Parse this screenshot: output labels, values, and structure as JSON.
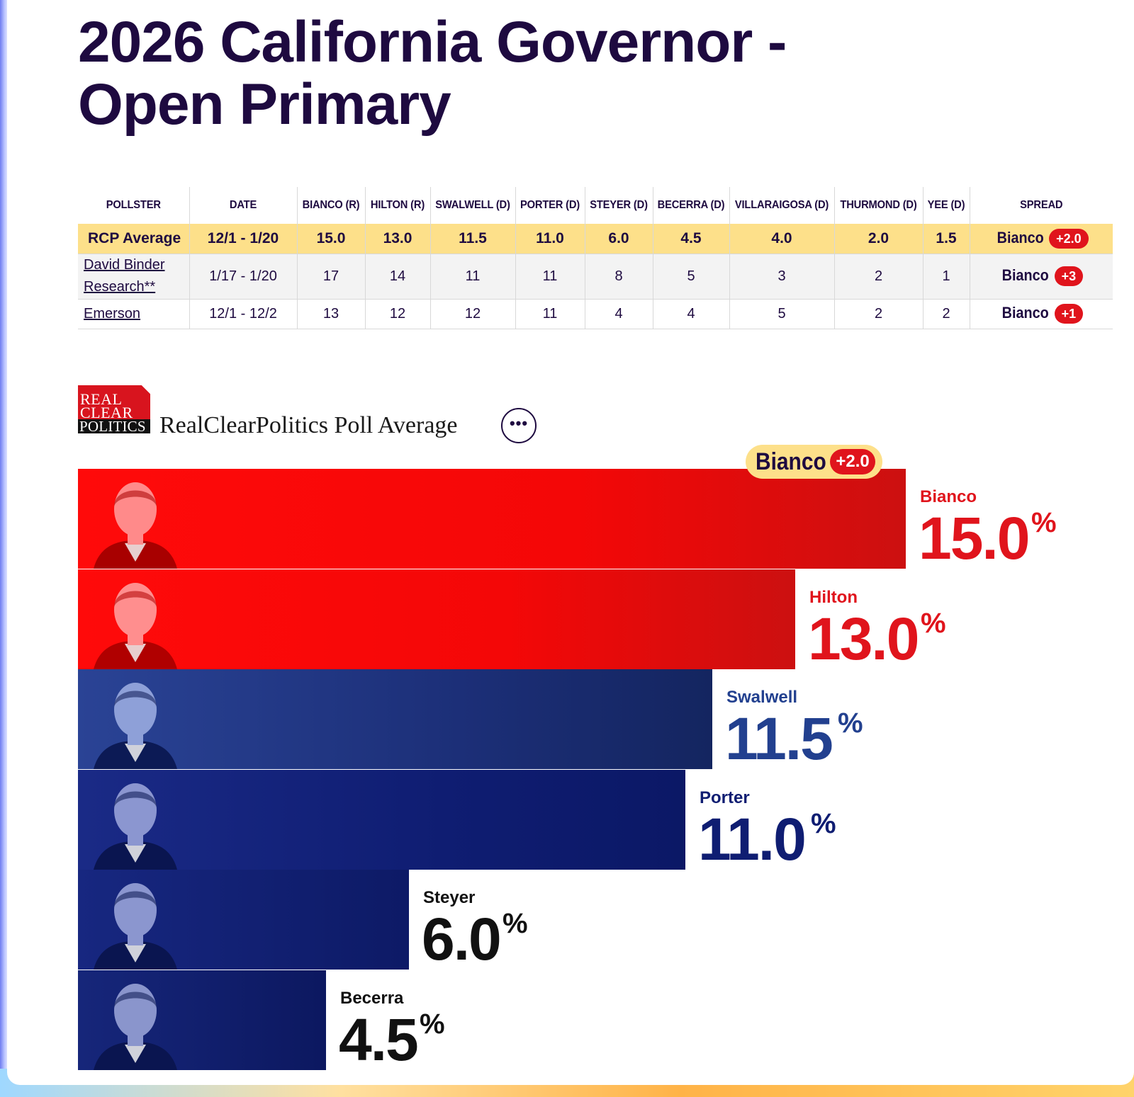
{
  "page": {
    "title": "2026 California Governor - Open Primary"
  },
  "table": {
    "headers": [
      "POLLSTER",
      "DATE",
      "BIANCO (R)",
      "HILTON (R)",
      "SWALWELL (D)",
      "PORTER (D)",
      "STEYER (D)",
      "BECERRA (D)",
      "VILLARAIGOSA (D)",
      "THURMOND (D)",
      "YEE (D)",
      "SPREAD"
    ],
    "rows": [
      {
        "pollster": "RCP Average",
        "date": "12/1 - 1/20",
        "values": [
          "15.0",
          "13.0",
          "11.5",
          "11.0",
          "6.0",
          "4.5",
          "4.0",
          "2.0",
          "1.5"
        ],
        "spread_name": "Bianco",
        "spread_value": "+2.0"
      },
      {
        "pollster": "David Binder Research**",
        "date": "1/17 - 1/20",
        "values": [
          "17",
          "14",
          "11",
          "11",
          "8",
          "5",
          "3",
          "2",
          "1"
        ],
        "spread_name": "Bianco",
        "spread_value": "+3"
      },
      {
        "pollster": "Emerson",
        "date": "12/1 - 12/2",
        "values": [
          "13",
          "12",
          "12",
          "11",
          "4",
          "4",
          "5",
          "2",
          "2"
        ],
        "spread_name": "Bianco",
        "spread_value": "+1"
      }
    ]
  },
  "rcp": {
    "logo_line1": "REAL",
    "logo_line2": "CLEAR",
    "logo_line3": "POLITICS",
    "title": "RealClearPolitics Poll Average",
    "more_label": "•••"
  },
  "chart_data": {
    "type": "bar",
    "orientation": "horizontal",
    "categories": [
      "Bianco",
      "Hilton",
      "Swalwell",
      "Porter",
      "Steyer",
      "Becerra"
    ],
    "values": [
      15.0,
      13.0,
      11.5,
      11.0,
      6.0,
      4.5
    ],
    "value_labels": [
      "15.0",
      "13.0",
      "11.5",
      "11.0",
      "6.0",
      "4.5"
    ],
    "unit": "%",
    "parties": [
      "R",
      "R",
      "D",
      "D",
      "D",
      "D"
    ],
    "leader": {
      "name": "Bianco",
      "spread": "+2.0"
    },
    "colors": {
      "republican": "#f40707",
      "republican_text": "#e0141c",
      "democrat_bar": "#0f1d72",
      "swalwell_text": "#22408f",
      "porter_text": "#0f1d72",
      "neutral_text": "#111111",
      "leader_pill": "#fde08a",
      "badge": "#e0141c"
    },
    "grid": false,
    "legend": "none"
  }
}
